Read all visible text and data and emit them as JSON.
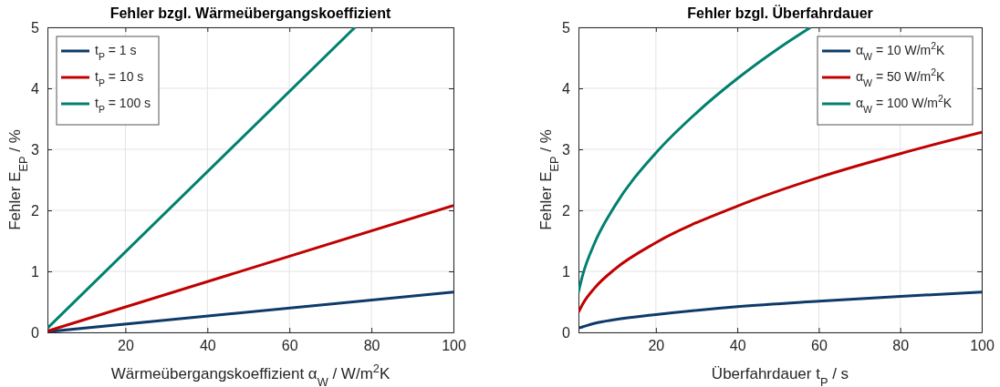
{
  "chart_data": [
    {
      "type": "line",
      "title": "Fehler bzgl. Wärmeübergangskoeffizient",
      "xlabel": "Wärmeübergangskoeffizient α$_{W}$ /  W/m$^{2}$K",
      "ylabel": "Fehler E$_{EP}$  /  %",
      "xlim": [
        1,
        100
      ],
      "xticks": [
        20,
        40,
        60,
        80,
        100
      ],
      "ylim": [
        0,
        5
      ],
      "yticks": [
        0,
        1,
        2,
        3,
        4,
        5
      ],
      "grid": true,
      "legend": "top left",
      "line_style": "solid",
      "marker": "none",
      "series": [
        {
          "name": "t$_{P}$ = 1 s",
          "color": "#0e3a6a",
          "x": [
            1,
            100
          ],
          "values": [
            0.01,
            0.66
          ]
        },
        {
          "name": "t$_{P}$ = 10 s",
          "color": "#c00000",
          "x": [
            1,
            100
          ],
          "values": [
            0.02,
            2.08
          ]
        },
        {
          "name": "t$_{P}$ = 100 s",
          "color": "#008070",
          "x": [
            1,
            76
          ],
          "values": [
            0.07,
            5
          ]
        }
      ]
    },
    {
      "type": "line",
      "title": "Fehler bzgl. Überfahrdauer",
      "xlabel": "Überfahrdauer t$_{P}$ /  s",
      "ylabel": "Fehler E$_{EP}$  /  %",
      "xlim": [
        1,
        100
      ],
      "xticks": [
        20,
        40,
        60,
        80,
        100
      ],
      "ylim": [
        0,
        5
      ],
      "yticks": [
        0,
        1,
        2,
        3,
        4,
        5
      ],
      "grid": true,
      "legend": "top right",
      "line_style": "solid",
      "marker": "none",
      "series": [
        {
          "name": "α$_{W}$ = 10 W/m$^{2}$K",
          "color": "#0e3a6a",
          "x": [
            1,
            2,
            5,
            10,
            20,
            40,
            60,
            80,
            100
          ],
          "values": [
            0.07,
            0.09,
            0.15,
            0.21,
            0.29,
            0.42,
            0.51,
            0.59,
            0.66
          ]
        },
        {
          "name": "α$_{W}$ = 50 W/m$^{2}$K",
          "color": "#c00000",
          "x": [
            1,
            2,
            5,
            10,
            20,
            40,
            60,
            80,
            100
          ],
          "values": [
            0.33,
            0.46,
            0.73,
            1.04,
            1.47,
            2.07,
            2.54,
            2.93,
            3.28
          ]
        },
        {
          "name": "α$_{W}$ = 100 W/m$^{2}$K",
          "color": "#008070",
          "x": [
            1,
            2,
            5,
            10,
            20,
            30,
            40,
            50,
            58
          ],
          "values": [
            0.66,
            0.93,
            1.47,
            2.08,
            2.94,
            3.6,
            4.16,
            4.65,
            5
          ]
        }
      ]
    }
  ]
}
